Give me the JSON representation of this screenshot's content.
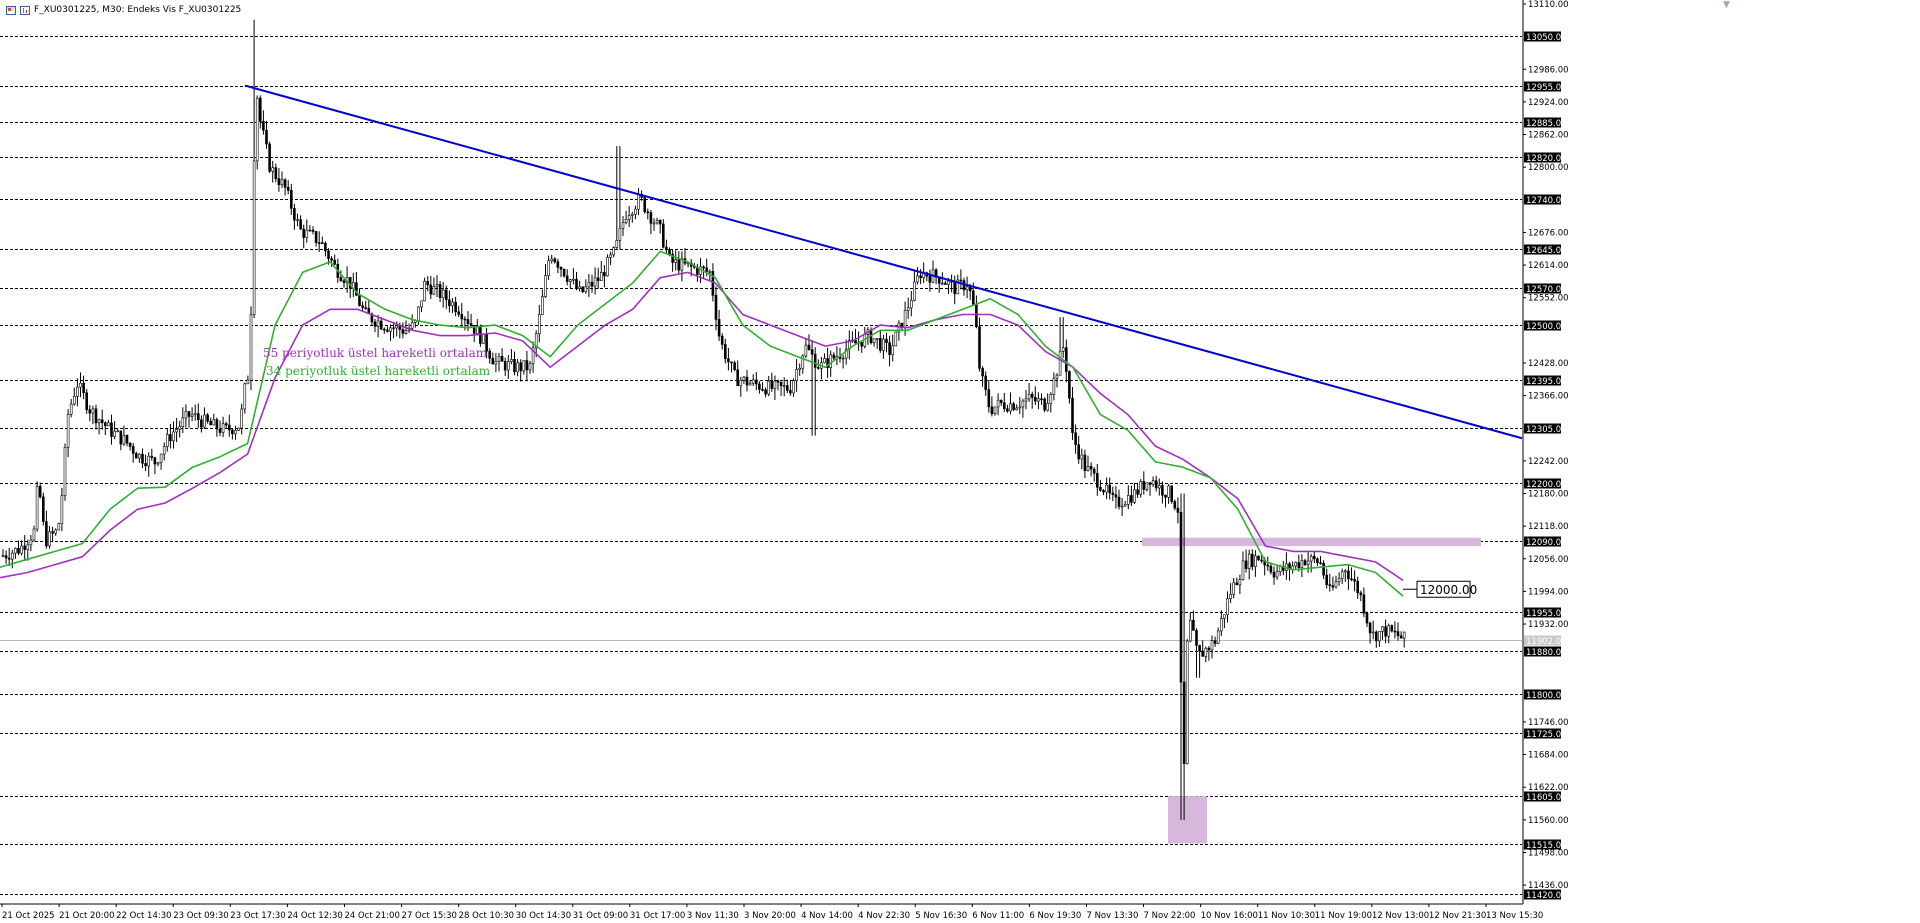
{
  "header": {
    "title": "F_XU0301225, M30:  Endeks Vis F_XU0301225"
  },
  "chart_data": {
    "type": "candlestick",
    "symbol": "F_XU0301225",
    "timeframe": "M30",
    "ylim": [
      11402,
      13110
    ],
    "y_axis_ticks": [
      13110,
      12986,
      12924,
      12862,
      12800,
      12676,
      12614,
      12552,
      12428,
      12366,
      12242,
      12180,
      12118,
      12056,
      11994,
      11932,
      11746,
      11684,
      11622,
      11560,
      11498,
      11436
    ],
    "x_axis_labels": [
      "21 Oct 2025",
      "21 Oct 20:00",
      "22 Oct 14:30",
      "23 Oct 09:30",
      "23 Oct 17:30",
      "24 Oct 12:30",
      "24 Oct 21:00",
      "27 Oct 15:30",
      "28 Oct 10:30",
      "30 Oct 14:30",
      "31 Oct 09:00",
      "31 Oct 17:00",
      "3 Nov 11:30",
      "3 Nov 20:00",
      "4 Nov 14:00",
      "4 Nov 22:30",
      "5 Nov 16:30",
      "6 Nov 11:00",
      "6 Nov 19:30",
      "7 Nov 13:30",
      "7 Nov 22:00",
      "10 Nov 16:00",
      "11 Nov 10:30",
      "11 Nov 19:00",
      "12 Nov 13:00",
      "12 Nov 21:30",
      "13 Nov 15:30"
    ],
    "horizontal_levels": [
      13050,
      12955,
      12885,
      12820,
      12740,
      12645,
      12570,
      12500,
      12395,
      12305,
      12200,
      12090,
      11955,
      11880,
      11800,
      11725,
      11605,
      11515,
      11420
    ],
    "current_price": {
      "label": "11902.00",
      "value": 11902
    },
    "price_label": {
      "text": "12000.00",
      "value": 12000
    },
    "annotations": [
      {
        "text": "55 periyotluk üstel hareketli ortalam",
        "color": "#a030c0"
      },
      {
        "text": "34 periyotluk üstel hareketli ortalam",
        "color": "#30b030"
      }
    ],
    "trendline": {
      "color": "#0000d0",
      "points": [
        {
          "x": "23 Oct 18:00",
          "y": 12955
        },
        {
          "x": "14 Nov 06:00",
          "y": 12285
        }
      ]
    },
    "zones": [
      {
        "name": "resistance",
        "y_low": 12080,
        "y_high": 12096,
        "color": "#d7b8dc"
      },
      {
        "name": "low",
        "y_low": 11515,
        "y_high": 11605,
        "color": "#d7b8dc"
      }
    ],
    "series": [
      {
        "name": "55 periyotluk üstel hareketli ortalam",
        "color": "#a030c0",
        "values": [
          12020,
          12030,
          12045,
          12060,
          12110,
          12150,
          12162,
          12190,
          12220,
          12255,
          12400,
          12500,
          12530,
          12530,
          12510,
          12490,
          12480,
          12480,
          12485,
          12470,
          12420,
          12460,
          12500,
          12530,
          12590,
          12600,
          12580,
          12520,
          12500,
          12480,
          12460,
          12470,
          12500,
          12495,
          12510,
          12520,
          12520,
          12500,
          12450,
          12420,
          12370,
          12330,
          12270,
          12245,
          12210,
          12170,
          12080,
          12070,
          12070,
          12060,
          12050,
          12015
        ]
      },
      {
        "name": "34 periyotluk üstel hareketli ortalam",
        "color": "#30b030",
        "values": [
          12040,
          12055,
          12070,
          12085,
          12150,
          12190,
          12192,
          12230,
          12250,
          12275,
          12500,
          12600,
          12620,
          12560,
          12530,
          12510,
          12500,
          12495,
          12500,
          12480,
          12440,
          12500,
          12540,
          12580,
          12640,
          12620,
          12590,
          12500,
          12460,
          12440,
          12420,
          12460,
          12490,
          12490,
          12510,
          12530,
          12550,
          12520,
          12460,
          12420,
          12330,
          12300,
          12240,
          12230,
          12210,
          12150,
          12050,
          12035,
          12040,
          12045,
          12030,
          11985
        ]
      }
    ],
    "price_path": [
      {
        "x": 0,
        "y": 12060
      },
      {
        "x": 20,
        "y": 12075
      },
      {
        "x": 35,
        "y": 12110
      },
      {
        "x": 38,
        "y": 12210
      },
      {
        "x": 45,
        "y": 12090
      },
      {
        "x": 58,
        "y": 12110
      },
      {
        "x": 62,
        "y": 12180
      },
      {
        "x": 68,
        "y": 12330
      },
      {
        "x": 77,
        "y": 12390
      },
      {
        "x": 90,
        "y": 12340
      },
      {
        "x": 110,
        "y": 12300
      },
      {
        "x": 125,
        "y": 12280
      },
      {
        "x": 140,
        "y": 12250
      },
      {
        "x": 155,
        "y": 12240
      },
      {
        "x": 170,
        "y": 12290
      },
      {
        "x": 190,
        "y": 12330
      },
      {
        "x": 210,
        "y": 12310
      },
      {
        "x": 225,
        "y": 12300
      },
      {
        "x": 240,
        "y": 12310
      },
      {
        "x": 245,
        "y": 12380
      },
      {
        "x": 250,
        "y": 12420
      },
      {
        "x": 253,
        "y": 12750
      },
      {
        "x": 256,
        "y": 12955
      },
      {
        "x": 260,
        "y": 12890
      },
      {
        "x": 270,
        "y": 12800
      },
      {
        "x": 285,
        "y": 12760
      },
      {
        "x": 300,
        "y": 12680
      },
      {
        "x": 320,
        "y": 12660
      },
      {
        "x": 335,
        "y": 12610
      },
      {
        "x": 350,
        "y": 12580
      },
      {
        "x": 365,
        "y": 12520
      },
      {
        "x": 385,
        "y": 12500
      },
      {
        "x": 405,
        "y": 12490
      },
      {
        "x": 415,
        "y": 12500
      },
      {
        "x": 425,
        "y": 12580
      },
      {
        "x": 440,
        "y": 12560
      },
      {
        "x": 460,
        "y": 12530
      },
      {
        "x": 480,
        "y": 12480
      },
      {
        "x": 495,
        "y": 12430
      },
      {
        "x": 515,
        "y": 12420
      },
      {
        "x": 530,
        "y": 12420
      },
      {
        "x": 540,
        "y": 12520
      },
      {
        "x": 550,
        "y": 12640
      },
      {
        "x": 565,
        "y": 12600
      },
      {
        "x": 580,
        "y": 12560
      },
      {
        "x": 600,
        "y": 12590
      },
      {
        "x": 615,
        "y": 12640
      },
      {
        "x": 625,
        "y": 12710
      },
      {
        "x": 640,
        "y": 12740
      },
      {
        "x": 660,
        "y": 12680
      },
      {
        "x": 670,
        "y": 12620
      },
      {
        "x": 690,
        "y": 12610
      },
      {
        "x": 710,
        "y": 12600
      },
      {
        "x": 720,
        "y": 12470
      },
      {
        "x": 735,
        "y": 12400
      },
      {
        "x": 750,
        "y": 12390
      },
      {
        "x": 770,
        "y": 12380
      },
      {
        "x": 790,
        "y": 12380
      },
      {
        "x": 805,
        "y": 12460
      },
      {
        "x": 820,
        "y": 12420
      },
      {
        "x": 835,
        "y": 12440
      },
      {
        "x": 850,
        "y": 12460
      },
      {
        "x": 870,
        "y": 12480
      },
      {
        "x": 890,
        "y": 12450
      },
      {
        "x": 905,
        "y": 12520
      },
      {
        "x": 920,
        "y": 12600
      },
      {
        "x": 940,
        "y": 12590
      },
      {
        "x": 955,
        "y": 12570
      },
      {
        "x": 968,
        "y": 12580
      },
      {
        "x": 975,
        "y": 12520
      },
      {
        "x": 980,
        "y": 12410
      },
      {
        "x": 990,
        "y": 12340
      },
      {
        "x": 1000,
        "y": 12350
      },
      {
        "x": 1015,
        "y": 12350
      },
      {
        "x": 1030,
        "y": 12360
      },
      {
        "x": 1045,
        "y": 12350
      },
      {
        "x": 1055,
        "y": 12400
      },
      {
        "x": 1063,
        "y": 12460
      },
      {
        "x": 1068,
        "y": 12400
      },
      {
        "x": 1072,
        "y": 12290
      },
      {
        "x": 1085,
        "y": 12230
      },
      {
        "x": 1100,
        "y": 12200
      },
      {
        "x": 1115,
        "y": 12160
      },
      {
        "x": 1135,
        "y": 12180
      },
      {
        "x": 1150,
        "y": 12210
      },
      {
        "x": 1160,
        "y": 12190
      },
      {
        "x": 1170,
        "y": 12180
      },
      {
        "x": 1178,
        "y": 12150
      },
      {
        "x": 1183,
        "y": 11580
      },
      {
        "x": 1188,
        "y": 11950
      },
      {
        "x": 1198,
        "y": 11870
      },
      {
        "x": 1215,
        "y": 11900
      },
      {
        "x": 1230,
        "y": 11990
      },
      {
        "x": 1245,
        "y": 12050
      },
      {
        "x": 1260,
        "y": 12060
      },
      {
        "x": 1275,
        "y": 12030
      },
      {
        "x": 1290,
        "y": 12040
      },
      {
        "x": 1305,
        "y": 12055
      },
      {
        "x": 1320,
        "y": 12050
      },
      {
        "x": 1330,
        "y": 11990
      },
      {
        "x": 1345,
        "y": 12040
      },
      {
        "x": 1360,
        "y": 11990
      },
      {
        "x": 1372,
        "y": 11910
      },
      {
        "x": 1385,
        "y": 11920
      },
      {
        "x": 1398,
        "y": 11910
      },
      {
        "x": 1405,
        "y": 11902
      }
    ]
  }
}
